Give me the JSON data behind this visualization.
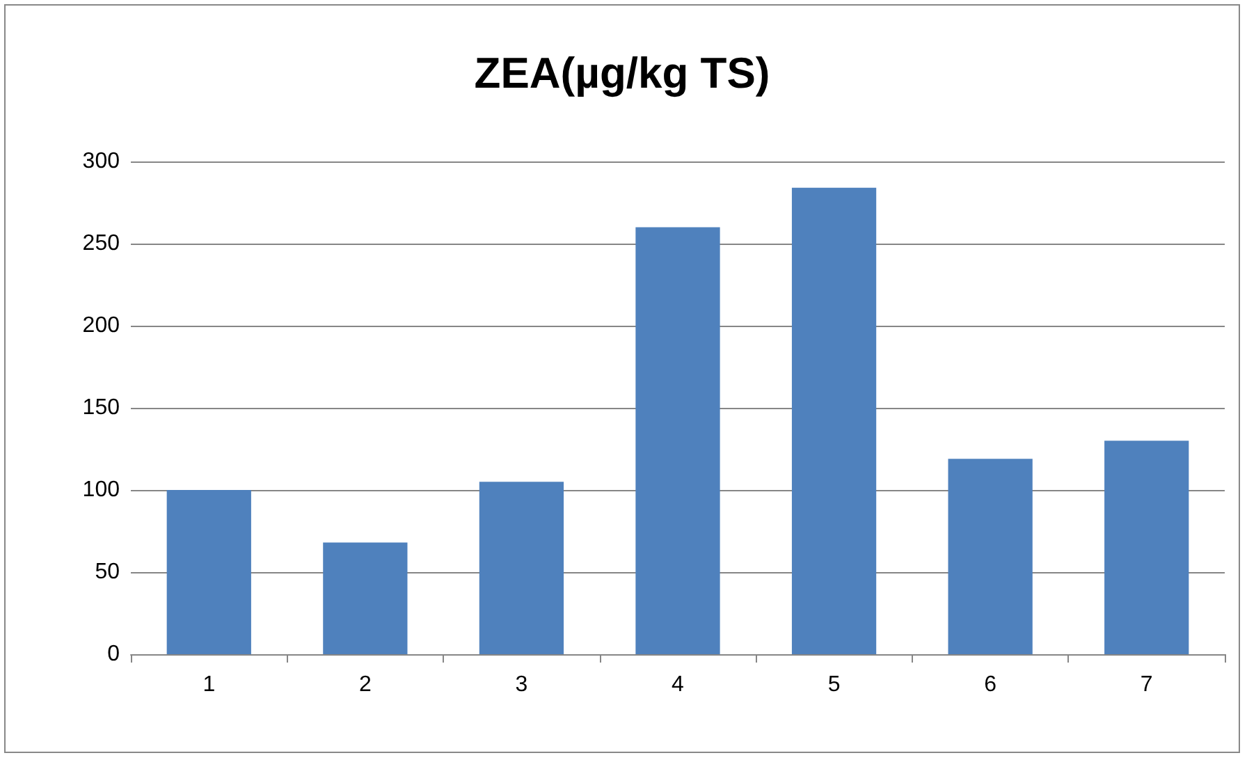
{
  "chart_data": {
    "type": "bar",
    "title": "ZEA(µg/kg TS)",
    "categories": [
      "1",
      "2",
      "3",
      "4",
      "5",
      "6",
      "7"
    ],
    "values": [
      100,
      68,
      105,
      260,
      284,
      119,
      130
    ],
    "color": "#4f81bd",
    "ylim": [
      0,
      300
    ],
    "yticks": [
      0,
      50,
      100,
      150,
      200,
      250,
      300
    ],
    "grid": "y"
  }
}
